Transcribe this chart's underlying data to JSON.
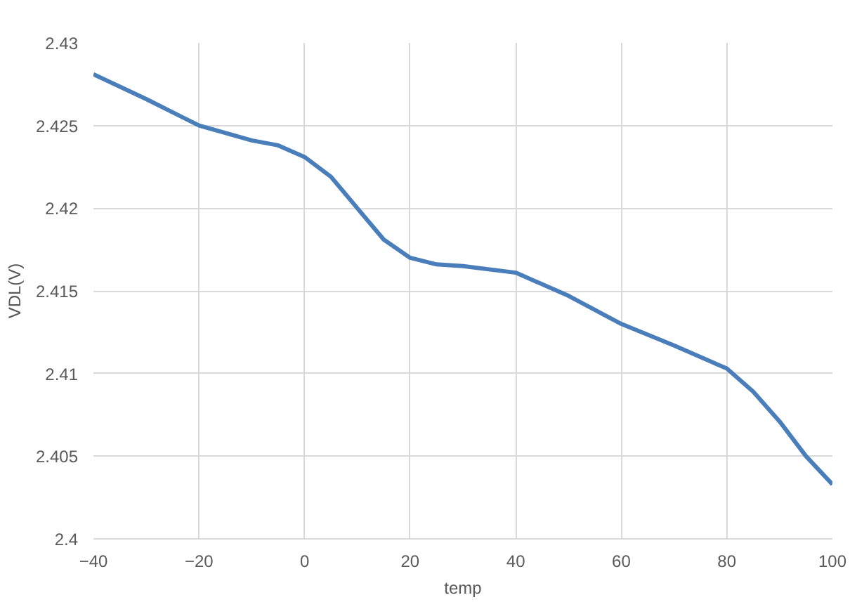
{
  "chart_data": {
    "type": "line",
    "xlabel": "temp",
    "ylabel": "VDL(V)",
    "x": [
      -40,
      -30,
      -20,
      -10,
      -5,
      0,
      5,
      10,
      15,
      20,
      25,
      30,
      40,
      50,
      60,
      70,
      80,
      85,
      90,
      95,
      100
    ],
    "series": [
      {
        "color": "#4a7ebb",
        "values": [
          2.4281,
          2.4266,
          2.425,
          2.4241,
          2.4238,
          2.4231,
          2.4219,
          2.42,
          2.4181,
          2.417,
          2.4166,
          2.4165,
          2.4161,
          2.4147,
          2.413,
          2.4117,
          2.4103,
          2.4089,
          2.4071,
          2.405,
          2.4033
        ]
      }
    ],
    "xlim": [
      -40,
      100
    ],
    "xticks": [
      -40,
      -20,
      0,
      20,
      40,
      60,
      80,
      100
    ],
    "ylim": [
      2.4,
      2.43
    ],
    "yticks": [
      2.4,
      2.405,
      2.41,
      2.415,
      2.42,
      2.425,
      2.43
    ],
    "grid": true,
    "marker": "none",
    "line_style": "solid"
  }
}
